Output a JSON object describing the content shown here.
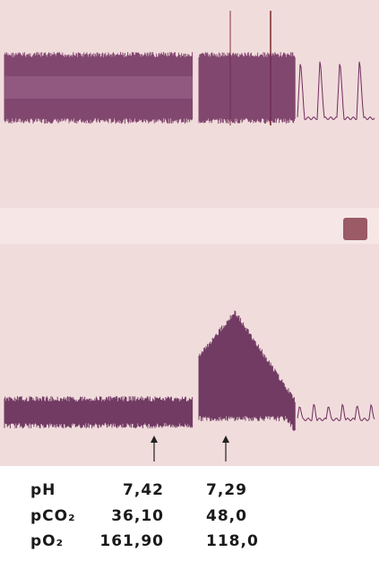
{
  "table": {
    "rows": [
      [
        "pH",
        "7,42",
        "7,29"
      ],
      [
        "pCO₂",
        "36,10",
        "48,0"
      ],
      [
        "pO₂",
        "161,90",
        "118,0"
      ]
    ]
  }
}
